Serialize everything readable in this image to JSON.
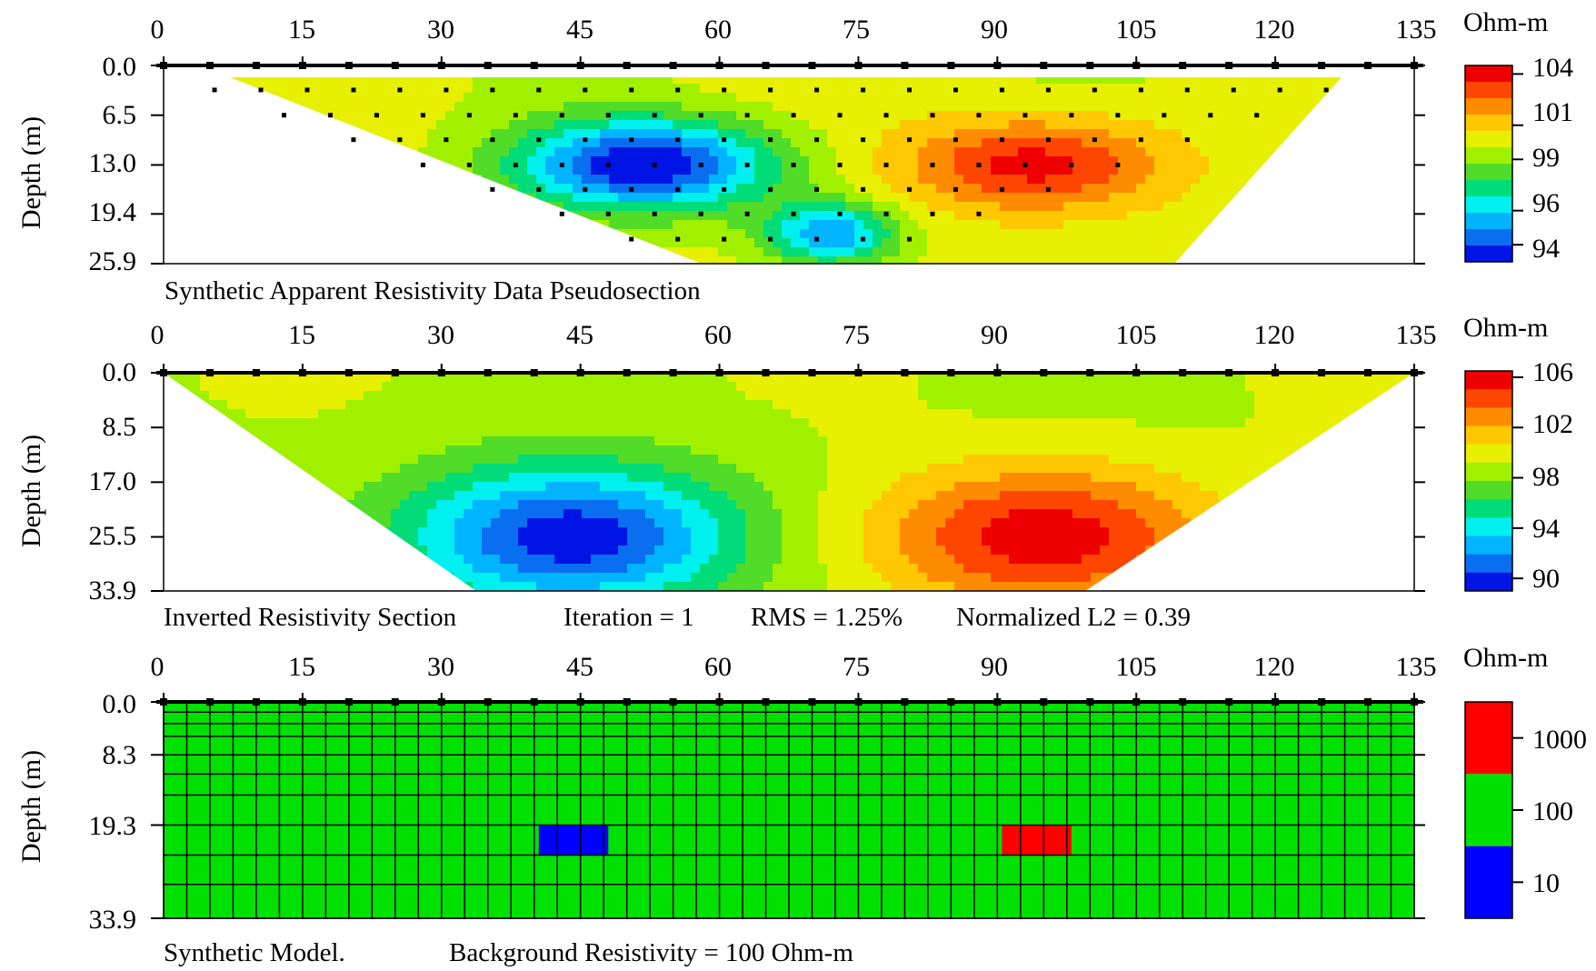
{
  "chart_data": [
    {
      "type": "heatmap",
      "title": "Synthetic Apparent Resistivity Data Pseudosection",
      "caption": [
        "Synthetic Apparent Resistivity Data Pseudosection"
      ],
      "ylabel": "Depth (m)",
      "xlim": [
        0,
        135
      ],
      "ylim": [
        0,
        25.9
      ],
      "x_ticks": [
        "0",
        "15",
        "30",
        "45",
        "60",
        "75",
        "90",
        "105",
        "120",
        "135"
      ],
      "y_ticks": [
        "0.0",
        "6.5",
        "13.0",
        "19.4",
        "25.9"
      ],
      "colorbar": {
        "unit": "Ohm-m",
        "range": [
          93,
          104.5
        ],
        "labels": [
          "104",
          "101",
          "99",
          "96",
          "94"
        ],
        "label_values": [
          104,
          101,
          99,
          96,
          94
        ]
      },
      "anomalies": [
        {
          "x": 52,
          "depth": 13,
          "value": 93,
          "sx": 14,
          "sy": 6
        },
        {
          "x": 72,
          "depth": 22,
          "value": 95,
          "sx": 7,
          "sy": 4
        },
        {
          "x": 94,
          "depth": 13,
          "value": 104,
          "sx": 14,
          "sy": 6
        }
      ],
      "background_value": 100
    },
    {
      "type": "heatmap",
      "title": "Inverted Resistivity Section",
      "caption": [
        "Inverted Resistivity Section",
        "Iteration = 1",
        "RMS = 1.25%",
        "Normalized L2 = 0.39"
      ],
      "ylabel": "Depth (m)",
      "xlim": [
        0,
        135
      ],
      "ylim": [
        0,
        33.9
      ],
      "x_ticks": [
        "0",
        "15",
        "30",
        "45",
        "60",
        "75",
        "90",
        "105",
        "120",
        "135"
      ],
      "y_ticks": [
        "0.0",
        "8.5",
        "17.0",
        "25.5",
        "33.9"
      ],
      "colorbar": {
        "unit": "Ohm-m",
        "range": [
          89,
          106.5
        ],
        "labels": [
          "106",
          "102",
          "98",
          "94",
          "90"
        ],
        "label_values": [
          106,
          102,
          98,
          94,
          90
        ]
      },
      "anomalies": [
        {
          "x": 44,
          "depth": 25.5,
          "value": 89.5,
          "sx": 18,
          "sy": 11
        },
        {
          "x": 95,
          "depth": 25.5,
          "value": 106,
          "sx": 18,
          "sy": 11
        }
      ],
      "background_value": 99
    },
    {
      "type": "table",
      "title": "Synthetic Model.",
      "caption": [
        "Synthetic Model.",
        "Background Resistivity = 100 Ohm-m"
      ],
      "ylabel": "Depth (m)",
      "xlim": [
        0,
        135
      ],
      "ylim": [
        0,
        33.9
      ],
      "x_ticks": [
        "0",
        "15",
        "30",
        "45",
        "60",
        "75",
        "90",
        "105",
        "120",
        "135"
      ],
      "y_ticks": [
        "0.0",
        "8.3",
        "19.3",
        "33.9"
      ],
      "colorbar": {
        "unit": "Ohm-m",
        "bands": [
          {
            "label": "1000",
            "color": "#ff0000"
          },
          {
            "label": "100",
            "color": "#00e100"
          },
          {
            "label": "10",
            "color": "#0000ff"
          }
        ]
      },
      "background_resistivity": 100,
      "blocks": [
        {
          "x0": 40.5,
          "x1": 48,
          "depth0": 19.3,
          "depth1": 24,
          "value": 10,
          "color": "#0000ff"
        },
        {
          "x0": 90.5,
          "x1": 98,
          "depth0": 19.3,
          "depth1": 24,
          "value": 1000,
          "color": "#ff0000"
        }
      ]
    }
  ],
  "colors": {
    "model_background": "#00e100",
    "model_low": "#0000ff",
    "model_high": "#ff0000",
    "ramp": [
      "#0014e6",
      "#0a6ef0",
      "#00b4ff",
      "#00f0f0",
      "#00dc78",
      "#50dc28",
      "#a0f000",
      "#e6f000",
      "#ffc800",
      "#ff8c00",
      "#ff4600",
      "#ee0000"
    ]
  }
}
